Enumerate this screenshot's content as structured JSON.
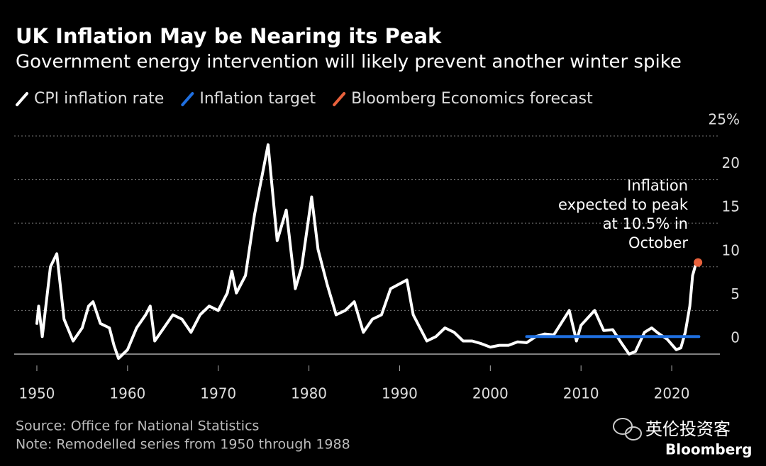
{
  "chart_data": {
    "type": "line",
    "title": "UK Inflation May be Nearing its Peak",
    "subtitle": "Government energy intervention will likely prevent another winter spike",
    "annotation": [
      "Inflation",
      "expected to peak",
      "at 10.5% in",
      "October"
    ],
    "source": "Source: Office for National Statistics",
    "note": "Note: Remodelled series from 1950 through 1988",
    "watermark": "英伦投资客",
    "logo": "Bloomberg",
    "xlim": [
      1947.5,
      2025
    ],
    "xticks": [
      1950,
      1960,
      1970,
      1980,
      1990,
      2000,
      2010,
      2020
    ],
    "ylim": [
      -2,
      25
    ],
    "yticks": [
      0,
      5,
      10,
      15,
      20,
      {
        "value": 25,
        "label": "25%"
      }
    ],
    "grid": true,
    "series": [
      {
        "name": "CPI inflation rate",
        "color": "#ffffff",
        "marker": "line",
        "x": [
          1950,
          1950.2,
          1950.6,
          1951.5,
          1952.2,
          1953,
          1954,
          1955,
          1955.7,
          1956.2,
          1957,
          1958,
          1958.5,
          1959,
          1960,
          1961,
          1962,
          1962.5,
          1963,
          1964,
          1965,
          1966,
          1967,
          1968,
          1969,
          1970,
          1971,
          1971.5,
          1972,
          1973,
          1974,
          1975.5,
          1976.5,
          1977.5,
          1978.5,
          1979.2,
          1980.3,
          1981,
          1982,
          1983,
          1984,
          1985,
          1986,
          1987,
          1988,
          1989,
          1990.8,
          1991.5,
          1992,
          1993,
          1994,
          1995,
          1996,
          1997,
          1998,
          1999,
          2000,
          2001,
          2002,
          2003,
          2004,
          2005,
          2006,
          2007,
          2008.7,
          2009.5,
          2010,
          2011.5,
          2012.5,
          2013.5,
          2014.5,
          2015.3,
          2016,
          2017,
          2017.8,
          2018.5,
          2019.5,
          2020.5,
          2021,
          2021.5,
          2022,
          2022.3,
          2022.6
        ],
        "values": [
          3.5,
          5.5,
          2,
          10,
          11.5,
          4,
          1.5,
          3,
          5.5,
          6,
          3.5,
          3,
          1,
          -0.5,
          0.5,
          3,
          4.5,
          5.5,
          1.5,
          3,
          4.5,
          4,
          2.5,
          4.5,
          5.5,
          5,
          7,
          9.5,
          7,
          9,
          16,
          24,
          13,
          16.5,
          7.5,
          10,
          18,
          12,
          8,
          4.5,
          5,
          6,
          2.5,
          4,
          4.5,
          7.5,
          8.5,
          4.5,
          3.5,
          1.5,
          2,
          3,
          2.5,
          1.5,
          1.5,
          1.2,
          0.8,
          1,
          1,
          1.4,
          1.3,
          2,
          2.3,
          2.2,
          5,
          1.5,
          3.3,
          5,
          2.7,
          2.8,
          1.2,
          0,
          0.3,
          2.5,
          3,
          2.4,
          1.7,
          0.5,
          0.7,
          2.5,
          5.5,
          9,
          10.1
        ]
      },
      {
        "name": "Inflation target",
        "color": "#1f6fe0",
        "marker": "line",
        "x": [
          2004,
          2023
        ],
        "values": [
          2,
          2
        ]
      },
      {
        "name": "Bloomberg Economics forecast",
        "color": "#e8613c",
        "marker": "point",
        "x": [
          2022.9
        ],
        "values": [
          10.5
        ]
      }
    ]
  }
}
